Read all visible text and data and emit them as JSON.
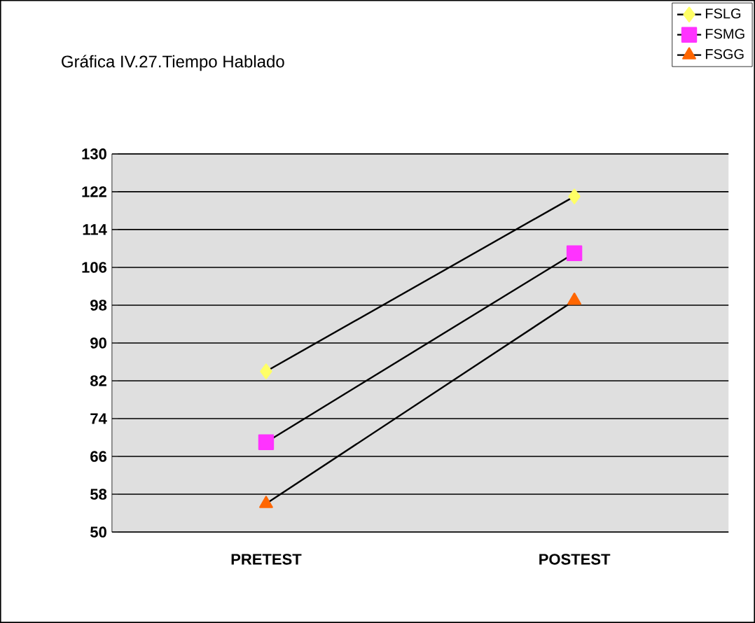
{
  "chart_data": {
    "type": "line",
    "title": "Gráfica IV.27.Tiempo Hablado",
    "categories": [
      "PRETEST",
      "POSTEST"
    ],
    "series": [
      {
        "name": "FSLG",
        "color": "#ffff66",
        "marker": "diamond",
        "values": [
          84,
          121
        ]
      },
      {
        "name": "FSMG",
        "color": "#ff33ff",
        "marker": "square",
        "values": [
          69,
          109
        ]
      },
      {
        "name": "FSGG",
        "color": "#ff6600",
        "marker": "triangle",
        "values": [
          56,
          99
        ]
      }
    ],
    "ylim": [
      50,
      130
    ],
    "yticks": [
      50,
      58,
      66,
      74,
      82,
      90,
      98,
      106,
      114,
      122,
      130
    ],
    "grid": "y",
    "legend": "top right",
    "line_style": "solid"
  }
}
